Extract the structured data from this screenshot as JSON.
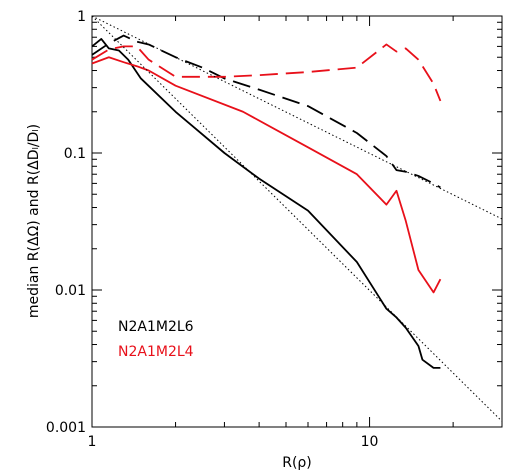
{
  "chart_data": {
    "type": "line",
    "title": "",
    "xlabel": "R(ρ)",
    "ylabel": "median R(ΔΩ)  and  R(ΔDₗ/Dₗ)",
    "xscale": "log",
    "yscale": "log",
    "xlim": [
      1,
      30
    ],
    "ylim": [
      0.001,
      1
    ],
    "x_ticks": [
      {
        "value": 1,
        "label": "1"
      },
      {
        "value": 10,
        "label": "10"
      }
    ],
    "y_ticks": [
      {
        "value": 0.001,
        "label": "0.001"
      },
      {
        "value": 0.01,
        "label": "0.01"
      },
      {
        "value": 0.1,
        "label": "0.1"
      },
      {
        "value": 1,
        "label": "1"
      }
    ],
    "legend": [
      {
        "label": "N2A1M2L6",
        "color": "#000000"
      },
      {
        "label": "N2A1M2L4",
        "color": "#e8101a"
      }
    ],
    "series": [
      {
        "legend_index": 0,
        "color": "#000000",
        "dash": "solid",
        "x": [
          1.0,
          1.08,
          1.15,
          1.25,
          1.35,
          1.5,
          2.0,
          3.0,
          4.0,
          6.0,
          9.0,
          11.5,
          12.5,
          13.5,
          15.0,
          15.5,
          17.0,
          18.0
        ],
        "y": [
          0.6,
          0.68,
          0.58,
          0.56,
          0.48,
          0.35,
          0.2,
          0.1,
          0.065,
          0.038,
          0.016,
          0.0073,
          0.0063,
          0.0053,
          0.0039,
          0.0031,
          0.0027,
          0.0027
        ]
      },
      {
        "legend_index": 0,
        "color": "#000000",
        "dash": "long-dash",
        "x": [
          1.0,
          1.15,
          1.3,
          1.45,
          1.6,
          2.0,
          2.5,
          3.0,
          4.0,
          6.0,
          9.0,
          11.5,
          12.5,
          13.5,
          15.0,
          17.0,
          18.0
        ],
        "y": [
          0.52,
          0.63,
          0.72,
          0.65,
          0.62,
          0.5,
          0.42,
          0.35,
          0.29,
          0.22,
          0.14,
          0.095,
          0.075,
          0.073,
          0.068,
          0.06,
          0.056
        ]
      },
      {
        "legend_index": 1,
        "color": "#e8101a",
        "dash": "solid",
        "x": [
          1.0,
          1.15,
          1.3,
          1.45,
          1.6,
          2.0,
          3.5,
          6.0,
          9.0,
          11.5,
          12.5,
          13.5,
          15.0,
          17.0,
          18.0
        ],
        "y": [
          0.45,
          0.5,
          0.46,
          0.43,
          0.4,
          0.31,
          0.2,
          0.11,
          0.07,
          0.042,
          0.053,
          0.032,
          0.014,
          0.0096,
          0.012
        ]
      },
      {
        "legend_index": 1,
        "color": "#e8101a",
        "dash": "long-dash",
        "x": [
          1.0,
          1.15,
          1.3,
          1.45,
          1.6,
          2.0,
          2.5,
          3.0,
          4.0,
          6.0,
          9.0,
          11.5,
          12.5,
          13.5,
          15.0,
          17.0,
          18.0
        ],
        "y": [
          0.48,
          0.57,
          0.6,
          0.6,
          0.48,
          0.36,
          0.36,
          0.36,
          0.37,
          0.39,
          0.42,
          0.62,
          0.55,
          0.58,
          0.48,
          0.32,
          0.24
        ]
      },
      {
        "color": "#000000",
        "dash": "dotted",
        "x": [
          1.0,
          30.0
        ],
        "y": [
          1.0,
          0.0011
        ]
      },
      {
        "color": "#000000",
        "dash": "dotted",
        "x": [
          1.0,
          30.0
        ],
        "y": [
          1.0,
          0.033
        ]
      }
    ]
  }
}
